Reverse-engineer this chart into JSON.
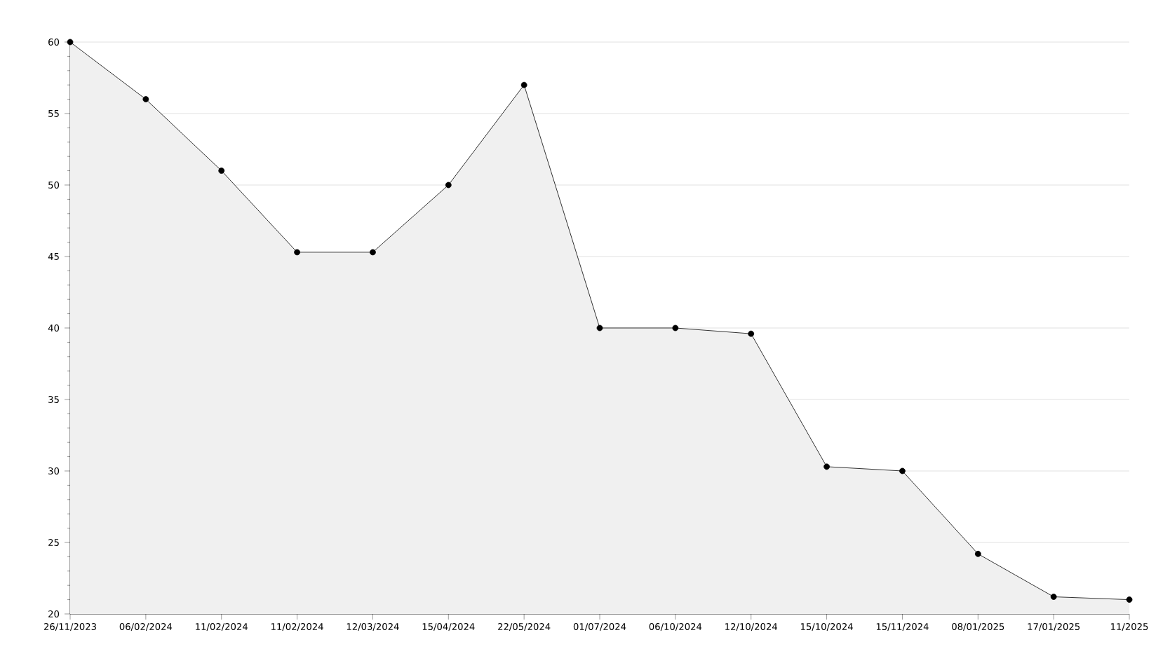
{
  "chart_data": {
    "type": "area",
    "categories": [
      "26/11/2023",
      "06/02/2024",
      "11/02/2024",
      "11/02/2024",
      "12/03/2024",
      "15/04/2024",
      "22/05/2024",
      "01/07/2024",
      "06/10/2024",
      "12/10/2024",
      "15/10/2024",
      "15/11/2024",
      "08/01/2025",
      "17/01/2025",
      "11/2025"
    ],
    "values": [
      60,
      56,
      51,
      45.3,
      45.3,
      50,
      57,
      40,
      40,
      39.6,
      30.3,
      30,
      24.2,
      21.2,
      21
    ],
    "color": "#f0f0f0",
    "ylim": [
      20,
      60
    ],
    "yticks": [
      20,
      25,
      30,
      35,
      40,
      45,
      50,
      55,
      60
    ],
    "grid": "y",
    "marker": "circle",
    "line_style": "solid"
  }
}
